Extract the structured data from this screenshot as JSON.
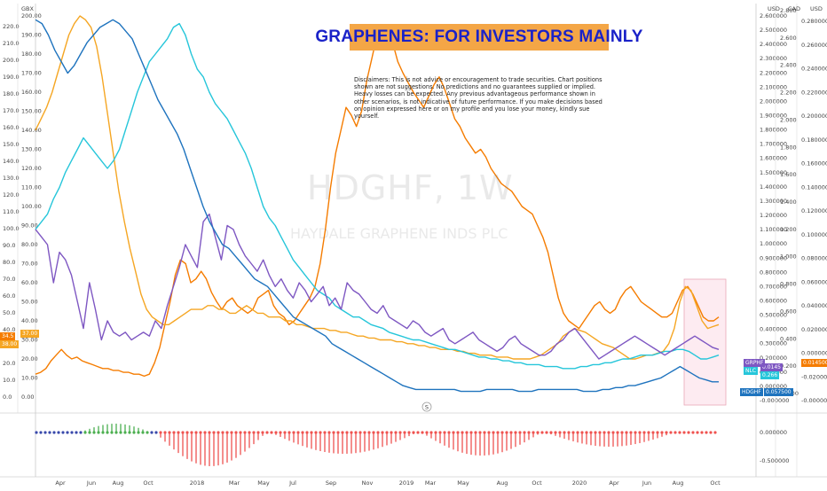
{
  "chart_data": {
    "type": "line",
    "title": "GRAPHENES: FOR INVESTORS MAINLY",
    "disclaimer": "Disclaimers: This is not advice or encouragement to trade securities. Chart positions shown are not suggestions. No predictions and no guarantees supplied or implied. Heavy losses can be expected. Any previous advantageous performance shown in other scenarios, is not indicative of future performance.   If you make decisions based on opinion expressed here or on my profile and you lose your money, kindly sue yourself.",
    "watermark": "HDGHF, 1W",
    "watermark_sub": "HAYDALE GRAPHENE INDS PLC",
    "left_axis_1": {
      "unit": "GBX",
      "ticks": [
        "200.00",
        "190.00",
        "180.00",
        "170.00",
        "160.00",
        "150.00",
        "140.00",
        "130.00",
        "120.00",
        "110.00",
        "100.00",
        "90.00",
        "80.00",
        "70.00",
        "60.00",
        "50.00",
        "40.00",
        "30.00",
        "20.00",
        "10.00",
        "0.00"
      ]
    },
    "left_axis_2": {
      "ticks": [
        "220.0",
        "210.0",
        "200.0",
        "190.0",
        "180.0",
        "170.0",
        "160.0",
        "150.0",
        "140.0",
        "130.0",
        "120.0",
        "110.0",
        "100.0",
        "90.0",
        "80.0",
        "70.0",
        "60.0",
        "50.0",
        "40.0",
        "30.0",
        "20.0",
        "10.0",
        "0.0"
      ]
    },
    "right_axis_1": {
      "unit": "USD",
      "ticks": [
        "2.600000",
        "2.500000",
        "2.400000",
        "2.300000",
        "2.200000",
        "2.100000",
        "2.000000",
        "1.900000",
        "1.800000",
        "1.700000",
        "1.600000",
        "1.500000",
        "1.400000",
        "1.300000",
        "1.200000",
        "1.100000",
        "1.000000",
        "0.900000",
        "0.800000",
        "0.700000",
        "0.600000",
        "0.500000",
        "0.400000",
        "0.300000",
        "0.200000",
        "0.100000",
        "0.000000",
        "-0.000000"
      ]
    },
    "right_axis_2": {
      "unit": "CAD",
      "ticks": [
        "0.280000",
        "0.260000",
        "0.240000",
        "0.220000",
        "0.200000",
        "0.180000",
        "0.160000",
        "0.140000",
        "0.120000",
        "0.100000",
        "0.080000",
        "0.060000",
        "0.040000",
        "0.020000",
        "0.000000",
        "-0.020000",
        "-0.000000"
      ]
    },
    "right_axis_3": {
      "unit": "USD",
      "ticks": [
        "2.800",
        "2.600",
        "2.400",
        "2.200",
        "2.000",
        "1.800",
        "1.600",
        "1.400",
        "1.200",
        "1.000",
        "0.800",
        "0.600",
        "0.400",
        "0.200",
        "-0.200"
      ]
    },
    "x_ticks": [
      "Apr",
      "Jun",
      "Aug",
      "Oct",
      "2018",
      "Mar",
      "May",
      "Jul",
      "Sep",
      "Nov",
      "2019",
      "Mar",
      "May",
      "Aug",
      "Oct",
      "2020",
      "Apr",
      "Jun",
      "Aug",
      "Oct"
    ],
    "oscillator_ticks": [
      "0.000000",
      "-0.500000"
    ],
    "price_tags": [
      {
        "label": "34.5",
        "color": "#f57c00"
      },
      {
        "label": "37.00",
        "color": "#f5a623"
      },
      {
        "label": "38.00",
        "color": "#f5a623"
      },
      {
        "label": "0.0145",
        "color": "#7e57c2"
      },
      {
        "label": "0.014500",
        "color": "#f57c00"
      },
      {
        "label": "0.266",
        "color": "#26c6da"
      },
      {
        "label": "GRPHF",
        "color": "#7e57c2"
      },
      {
        "label": "NLC",
        "color": "#26c6da"
      },
      {
        "label": "HDGHF",
        "color": "#1e73be"
      },
      {
        "label": "0.057500",
        "color": "#1e73be"
      }
    ],
    "marker_label": "S",
    "series": [
      {
        "color": "#f57c00",
        "values": [
          12,
          13,
          15,
          19,
          22,
          25,
          22,
          20,
          21,
          19,
          18,
          17,
          16,
          15,
          15,
          14,
          14,
          13,
          13,
          12,
          12,
          11,
          12,
          18,
          26,
          38,
          50,
          64,
          72,
          70,
          60,
          62,
          66,
          62,
          55,
          50,
          46,
          50,
          52,
          48,
          46,
          44,
          46,
          52,
          54,
          56,
          48,
          44,
          42,
          38,
          40,
          44,
          48,
          52,
          58,
          70,
          88,
          110,
          128,
          140,
          152,
          148,
          142,
          150,
          166,
          178,
          190,
          195,
          192,
          186,
          176,
          170,
          165,
          160,
          156,
          152,
          158,
          164,
          168,
          162,
          154,
          146,
          142,
          136,
          132,
          128,
          130,
          126,
          120,
          116,
          112,
          110,
          108,
          104,
          100,
          98,
          96,
          90,
          84,
          76,
          64,
          52,
          44,
          40,
          38,
          36,
          40,
          44,
          48,
          50,
          46,
          44,
          46,
          52,
          56,
          58,
          54,
          50,
          48,
          46,
          44,
          42,
          42,
          44,
          50,
          56,
          58,
          54,
          48,
          42,
          40,
          40,
          42
        ],
        "x0": 0,
        "x1": 132
      },
      {
        "color": "#f5a623",
        "values": [
          140,
          146,
          152,
          160,
          170,
          180,
          190,
          196,
          200,
          198,
          194,
          184,
          168,
          148,
          128,
          108,
          92,
          78,
          66,
          54,
          46,
          42,
          40,
          38,
          38,
          40,
          42,
          44,
          46,
          46,
          46,
          48,
          48,
          46,
          46,
          44,
          44,
          46,
          48,
          46,
          44,
          44,
          42,
          42,
          42,
          40,
          40,
          38,
          38,
          37,
          36,
          36,
          36,
          35,
          35,
          34,
          34,
          33,
          32,
          32,
          31,
          31,
          30,
          30,
          30,
          29,
          29,
          28,
          28,
          27,
          27,
          26,
          26,
          25,
          25,
          25,
          24,
          24,
          23,
          23,
          22,
          22,
          22,
          21,
          21,
          21,
          20,
          20,
          20,
          20,
          21,
          22,
          24,
          26,
          28,
          32,
          34,
          36,
          35,
          34,
          32,
          30,
          28,
          27,
          26,
          24,
          22,
          20,
          20,
          21,
          22,
          22,
          23,
          24,
          28,
          36,
          50,
          58,
          56,
          48,
          40,
          36,
          37,
          38
        ],
        "x0": 0,
        "x1": 132
      },
      {
        "color": "#26c6da",
        "values": [
          88,
          92,
          96,
          104,
          110,
          118,
          124,
          130,
          136,
          132,
          128,
          124,
          120,
          124,
          130,
          140,
          150,
          160,
          168,
          176,
          180,
          184,
          188,
          194,
          196,
          190,
          180,
          172,
          168,
          160,
          154,
          150,
          146,
          140,
          134,
          128,
          120,
          110,
          100,
          94,
          90,
          84,
          78,
          72,
          68,
          64,
          60,
          56,
          54,
          52,
          48,
          46,
          44,
          42,
          42,
          40,
          38,
          37,
          36,
          34,
          33,
          32,
          31,
          30,
          30,
          29,
          28,
          27,
          26,
          25,
          25,
          24,
          23,
          22,
          21,
          21,
          20,
          20,
          19,
          19,
          18,
          18,
          17,
          17,
          17,
          16,
          16,
          16,
          15,
          15,
          15,
          16,
          16,
          17,
          17,
          18,
          18,
          19,
          20,
          20,
          21,
          22,
          22,
          22,
          23,
          24,
          24,
          25,
          25,
          24,
          22,
          20,
          20,
          21,
          22
        ],
        "x0": 0,
        "x1": 132
      },
      {
        "color": "#7e57c2",
        "values": [
          88,
          84,
          80,
          60,
          76,
          72,
          64,
          50,
          36,
          60,
          46,
          30,
          40,
          34,
          32,
          34,
          30,
          32,
          34,
          32,
          40,
          36,
          48,
          58,
          68,
          80,
          74,
          68,
          92,
          96,
          84,
          72,
          90,
          88,
          80,
          74,
          70,
          66,
          72,
          64,
          58,
          62,
          56,
          52,
          60,
          56,
          50,
          54,
          58,
          48,
          52,
          46,
          60,
          56,
          54,
          50,
          46,
          44,
          48,
          42,
          40,
          38,
          36,
          40,
          38,
          34,
          32,
          34,
          36,
          30,
          28,
          30,
          32,
          34,
          30,
          28,
          26,
          24,
          26,
          30,
          32,
          28,
          26,
          24,
          22,
          22,
          24,
          28,
          30,
          34,
          36,
          32,
          28,
          24,
          20,
          22,
          24,
          26,
          28,
          30,
          32,
          30,
          28,
          26,
          24,
          22,
          24,
          26,
          28,
          30,
          32,
          30,
          28,
          26,
          25
        ],
        "x0": 0,
        "x1": 132
      },
      {
        "color": "#1e73be",
        "values": [
          198,
          196,
          190,
          182,
          176,
          170,
          174,
          180,
          186,
          190,
          194,
          196,
          198,
          196,
          192,
          188,
          180,
          172,
          164,
          156,
          150,
          144,
          138,
          130,
          120,
          110,
          100,
          92,
          86,
          80,
          78,
          74,
          70,
          66,
          62,
          60,
          58,
          54,
          50,
          46,
          42,
          40,
          38,
          36,
          34,
          32,
          28,
          26,
          24,
          22,
          20,
          18,
          16,
          14,
          12,
          10,
          8,
          6,
          5,
          4,
          4,
          4,
          4,
          4,
          4,
          4,
          3,
          3,
          3,
          3,
          4,
          4,
          4,
          4,
          4,
          3,
          3,
          3,
          4,
          4,
          4,
          4,
          4,
          4,
          4,
          3,
          3,
          3,
          4,
          4,
          5,
          5,
          6,
          6,
          7,
          8,
          9,
          10,
          12,
          14,
          16,
          14,
          12,
          10,
          9,
          8,
          8
        ],
        "x0": 0,
        "x1": 132
      }
    ]
  }
}
